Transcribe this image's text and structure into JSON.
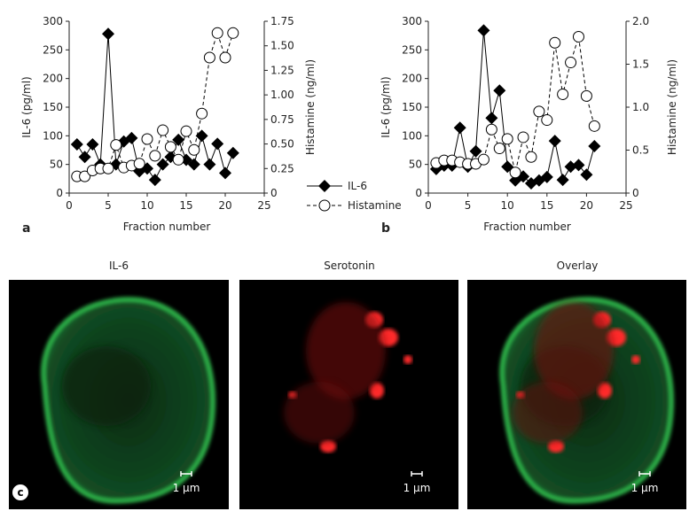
{
  "chart_data": [
    {
      "type": "line",
      "panel": "a",
      "x_label": "Fraction number",
      "y_label": "IL-6 (pg/ml)",
      "y2_label": "Histamine (ng/ml)",
      "xlim": [
        0,
        25
      ],
      "xticks": [
        0,
        5,
        10,
        15,
        20,
        25
      ],
      "ylim": [
        0,
        300
      ],
      "yticks": [
        0,
        50,
        100,
        150,
        200,
        250,
        300
      ],
      "y2lim": [
        0,
        1.75
      ],
      "y2ticks": [
        0,
        0.25,
        {
          "value": 0.5,
          "label": "0.50"
        },
        0.75,
        {
          "value": 1,
          "label": "1.00"
        },
        1.25,
        {
          "value": 1.5,
          "label": "1.50"
        },
        1.75
      ],
      "legend": "outside lower right",
      "x": [
        1,
        2,
        3,
        4,
        5,
        6,
        7,
        8,
        9,
        10,
        11,
        12,
        13,
        14,
        15,
        16,
        17,
        18,
        19,
        20,
        21
      ],
      "series": [
        {
          "name": "IL-6",
          "color": "#000000",
          "marker": "diamond",
          "dash": false,
          "values": [
            85,
            63,
            85,
            50,
            278,
            50,
            90,
            96,
            38,
            43,
            23,
            50,
            63,
            93,
            58,
            50,
            100,
            50,
            86,
            35,
            70
          ]
        },
        {
          "name": "Histamine",
          "color": "#000000",
          "marker": "circle",
          "dash": true,
          "axis": "y2",
          "values": [
            0.17,
            0.17,
            0.23,
            0.25,
            0.25,
            0.49,
            0.26,
            0.28,
            0.3,
            0.55,
            0.38,
            0.64,
            0.47,
            0.34,
            0.63,
            0.44,
            0.81,
            1.38,
            1.63,
            1.38,
            1.63
          ]
        }
      ]
    },
    {
      "type": "line",
      "panel": "b",
      "x_label": "Fraction number",
      "y_label": "IL-6 (pg/ml)",
      "y2_label": "Histamine (ng/ml)",
      "xlim": [
        0,
        25
      ],
      "xticks": [
        0,
        5,
        10,
        15,
        20,
        25
      ],
      "ylim": [
        0,
        300
      ],
      "yticks": [
        0,
        50,
        100,
        150,
        200,
        250,
        300
      ],
      "y2lim": [
        0,
        2
      ],
      "y2ticks": [
        0,
        0.5,
        {
          "value": 1,
          "label": "1.0"
        },
        1.5,
        {
          "value": 2,
          "label": "2.0"
        }
      ],
      "x": [
        1,
        2,
        3,
        4,
        5,
        6,
        7,
        8,
        9,
        10,
        11,
        12,
        13,
        14,
        15,
        16,
        17,
        18,
        19,
        20,
        21
      ],
      "series": [
        {
          "color": "#000000",
          "marker": "diamond",
          "dash": false,
          "values": [
            42,
            48,
            48,
            114,
            46,
            73,
            284,
            131,
            179,
            46,
            22,
            29,
            17,
            22,
            28,
            91,
            23,
            46,
            49,
            32,
            82
          ]
        },
        {
          "color": "#000000",
          "marker": "circle",
          "dash": true,
          "axis": "y2",
          "values": [
            0.35,
            0.38,
            0.38,
            0.36,
            0.34,
            0.34,
            0.39,
            0.74,
            0.52,
            0.63,
            0.24,
            0.65,
            0.42,
            0.95,
            0.85,
            1.75,
            1.15,
            1.52,
            1.82,
            1.13,
            0.78
          ]
        }
      ]
    }
  ],
  "images": {
    "panel": "c",
    "panels": [
      {
        "title": "IL-6",
        "scale": "1 μm"
      },
      {
        "title": "Serotonin",
        "scale": "1 μm"
      },
      {
        "title": "Overlay",
        "scale": "1 μm"
      }
    ]
  }
}
